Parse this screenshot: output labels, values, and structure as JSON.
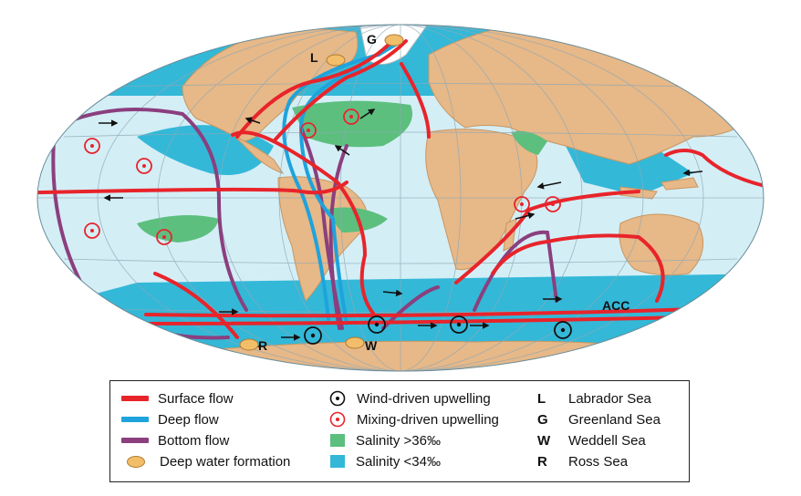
{
  "map": {
    "station_labels": {
      "G": "G",
      "L": "L",
      "R": "R",
      "W": "W"
    },
    "acc_label": "ACC"
  },
  "legend": {
    "surface_flow": "Surface flow",
    "deep_flow": "Deep flow",
    "bottom_flow": "Bottom flow",
    "deep_water_formation": "Deep water formation",
    "wind_upwelling": "Wind-driven upwelling",
    "mixing_upwelling": "Mixing-driven upwelling",
    "salinity_high": "Salinity >36‰",
    "salinity_low": "Salinity <34‰",
    "key_L": "L",
    "name_L": "Labrador Sea",
    "key_G": "G",
    "name_G": "Greenland Sea",
    "key_W": "W",
    "name_W": "Weddell Sea",
    "key_R": "R",
    "name_R": "Ross Sea"
  },
  "colors": {
    "ocean": "#d4eef6",
    "land": "#e7b888",
    "salinity_low": "#33b8d8",
    "salinity_high": "#5cbf7e",
    "surface": "#e8242b",
    "deep": "#1ea3dc",
    "bottom": "#8b3f7e",
    "formation": "#f2be6a",
    "ice": "#ffffff"
  }
}
